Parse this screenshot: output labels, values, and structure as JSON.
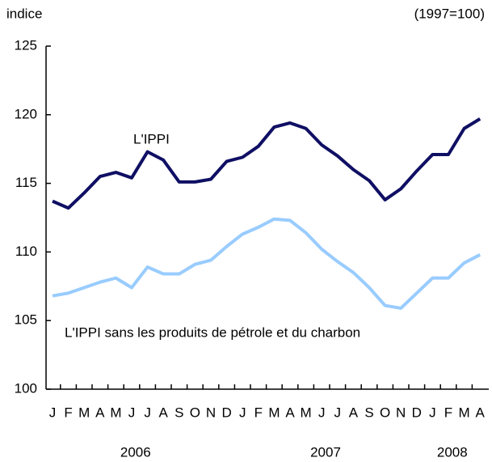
{
  "chart_data": {
    "type": "line",
    "y_axis_label": "indice",
    "base_label": "(1997=100)",
    "categories": [
      "J",
      "F",
      "M",
      "A",
      "M",
      "J",
      "J",
      "A",
      "S",
      "O",
      "N",
      "D",
      "J",
      "F",
      "M",
      "A",
      "M",
      "J",
      "J",
      "A",
      "S",
      "O",
      "N",
      "D",
      "J",
      "F",
      "M",
      "A"
    ],
    "years": [
      "2006",
      "2007",
      "2008"
    ],
    "ylim": [
      100,
      125
    ],
    "yticks": [
      100,
      105,
      110,
      115,
      120,
      125
    ],
    "series": [
      {
        "name": "L'IPPI",
        "color": "#0f0f64",
        "values": [
          113.7,
          113.2,
          114.3,
          115.5,
          115.8,
          115.4,
          117.3,
          116.7,
          115.1,
          115.1,
          115.3,
          116.6,
          116.9,
          117.7,
          119.1,
          119.4,
          119.0,
          117.8,
          117.0,
          116.0,
          115.2,
          113.8,
          114.6,
          115.9,
          117.1,
          117.1,
          119.0,
          119.7
        ]
      },
      {
        "name": "L'IPPI sans les produits de pétrole et du charbon",
        "color": "#99ccff",
        "values": [
          106.8,
          107.0,
          107.4,
          107.8,
          108.1,
          107.4,
          108.9,
          108.4,
          108.4,
          109.1,
          109.4,
          110.4,
          111.3,
          111.8,
          112.4,
          112.3,
          111.4,
          110.2,
          109.3,
          108.5,
          107.4,
          106.1,
          105.9,
          107.0,
          108.1,
          108.1,
          109.2,
          109.8
        ]
      }
    ]
  }
}
